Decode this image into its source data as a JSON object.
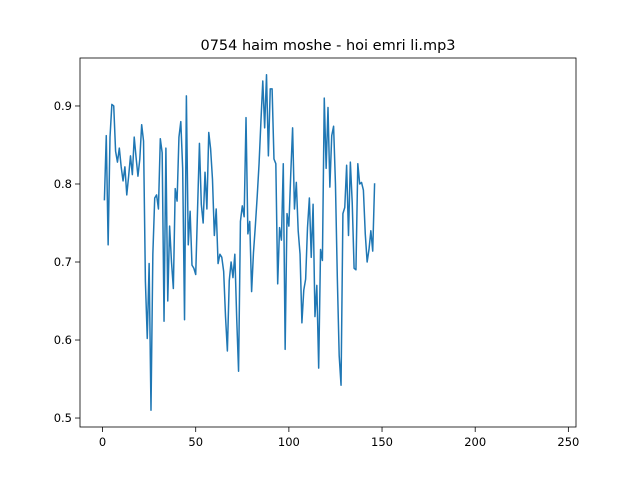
{
  "chart_data": {
    "type": "line",
    "title": "0754 haim moshe - hoi emri li.mp3",
    "xlabel": "",
    "ylabel": "",
    "xlim": [
      -12.1,
      254.1
    ],
    "ylim": [
      0.4885,
      0.9615
    ],
    "x_ticks": [
      0,
      50,
      100,
      150,
      200,
      250
    ],
    "y_ticks": [
      0.5,
      0.6,
      0.7,
      0.8,
      0.9
    ],
    "x_tick_labels": [
      "0",
      "50",
      "100",
      "150",
      "200",
      "250"
    ],
    "y_tick_labels": [
      "0.5",
      "0.6",
      "0.7",
      "0.8",
      "0.9"
    ],
    "grid": false,
    "legend": "none",
    "series_color": "#1f77b4",
    "x_start": 1,
    "x_step": 1,
    "values": [
      0.78,
      0.862,
      0.722,
      0.86,
      0.902,
      0.9,
      0.842,
      0.828,
      0.846,
      0.822,
      0.804,
      0.822,
      0.786,
      0.81,
      0.836,
      0.812,
      0.86,
      0.834,
      0.81,
      0.832,
      0.876,
      0.855,
      0.675,
      0.602,
      0.698,
      0.51,
      0.71,
      0.782,
      0.786,
      0.768,
      0.858,
      0.84,
      0.624,
      0.846,
      0.65,
      0.746,
      0.7,
      0.666,
      0.794,
      0.778,
      0.86,
      0.88,
      0.82,
      0.626,
      0.913,
      0.722,
      0.765,
      0.696,
      0.692,
      0.684,
      0.768,
      0.852,
      0.774,
      0.75,
      0.815,
      0.768,
      0.866,
      0.845,
      0.806,
      0.734,
      0.768,
      0.698,
      0.71,
      0.706,
      0.688,
      0.63,
      0.586,
      0.676,
      0.7,
      0.68,
      0.71,
      0.628,
      0.56,
      0.752,
      0.772,
      0.758,
      0.885,
      0.736,
      0.752,
      0.662,
      0.712,
      0.746,
      0.784,
      0.826,
      0.88,
      0.932,
      0.872,
      0.94,
      0.836,
      0.922,
      0.922,
      0.832,
      0.826,
      0.672,
      0.744,
      0.728,
      0.826,
      0.588,
      0.762,
      0.746,
      0.812,
      0.872,
      0.768,
      0.802,
      0.74,
      0.71,
      0.622,
      0.664,
      0.678,
      0.744,
      0.782,
      0.706,
      0.774,
      0.63,
      0.67,
      0.564,
      0.716,
      0.702,
      0.91,
      0.82,
      0.898,
      0.796,
      0.862,
      0.874,
      0.8,
      0.68,
      0.58,
      0.542,
      0.762,
      0.77,
      0.824,
      0.734,
      0.828,
      0.776,
      0.692,
      0.69,
      0.826,
      0.8,
      0.802,
      0.792,
      0.736,
      0.7,
      0.716,
      0.74,
      0.714,
      0.8
    ]
  }
}
